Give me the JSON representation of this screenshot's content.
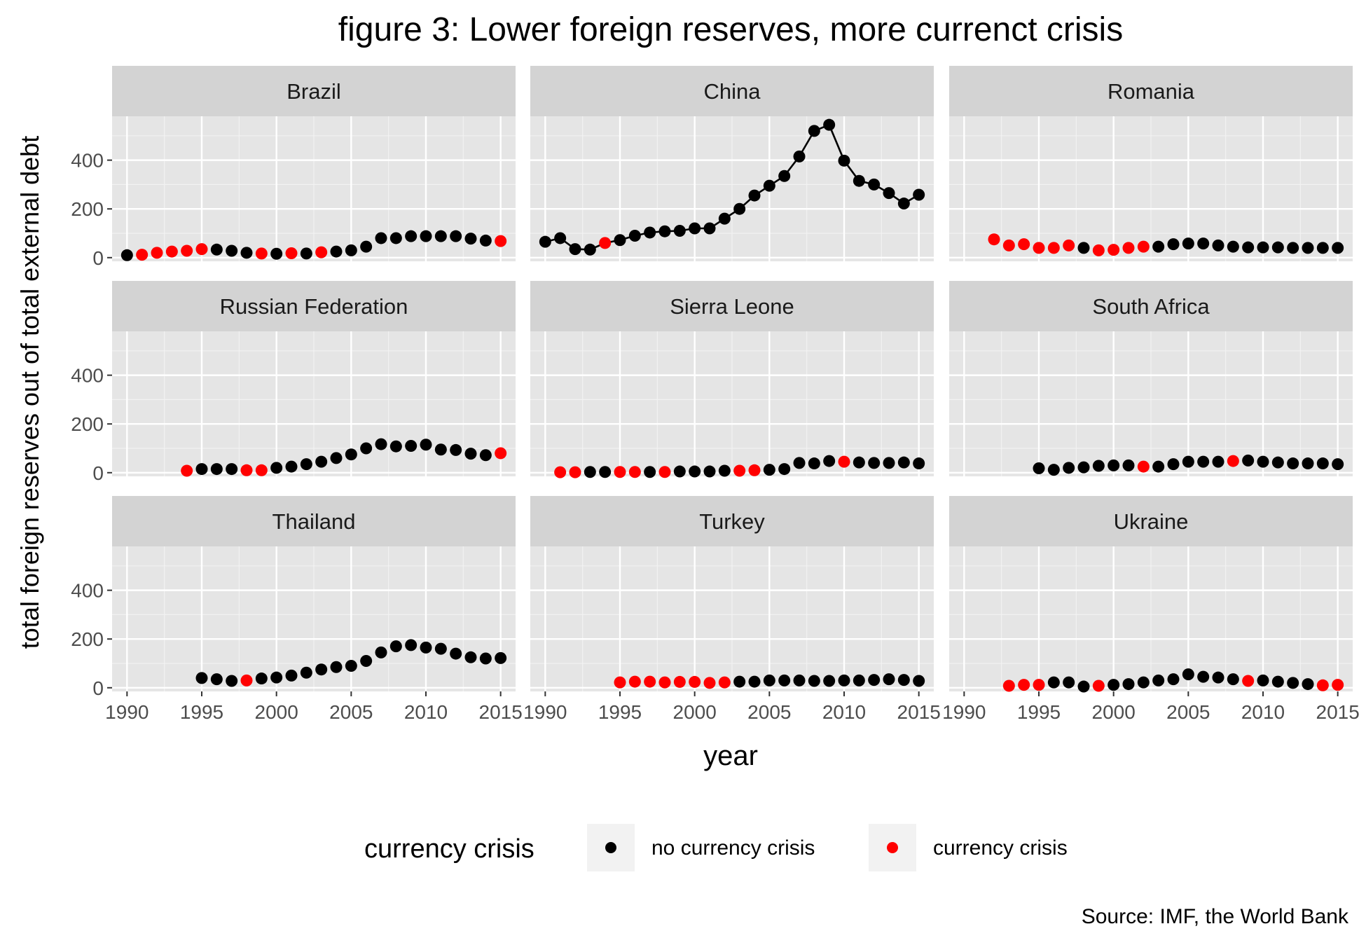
{
  "chart_data": {
    "type": "scatter",
    "title": "figure 3: Lower foreign reserves, more currenct crisis",
    "xlabel": "year",
    "ylabel": "total foreign reserves out of total external debt",
    "caption": "Source: IMF, the World Bank",
    "xlim": [
      1989,
      2016
    ],
    "ylim": [
      -15,
      580
    ],
    "xticks": [
      1990,
      1995,
      2000,
      2005,
      2010,
      2015
    ],
    "yticks": [
      0,
      200,
      400
    ],
    "grid": true,
    "legend": {
      "title": "currency crisis",
      "position": "bottom",
      "entries": [
        {
          "label": "no currency crisis",
          "color": "#000000"
        },
        {
          "label": "currency crisis",
          "color": "#ff0000"
        }
      ]
    },
    "colors": {
      "no_crisis": "#000000",
      "crisis": "#ff0000",
      "panel_bg": "#e5e5e5",
      "strip_bg": "#d3d3d3"
    },
    "panels": [
      {
        "name": "Brazil",
        "x": [
          1990,
          1991,
          1992,
          1993,
          1994,
          1995,
          1996,
          1997,
          1998,
          1999,
          2000,
          2001,
          2002,
          2003,
          2004,
          2005,
          2006,
          2007,
          2008,
          2009,
          2010,
          2011,
          2012,
          2013,
          2014,
          2015
        ],
        "y": [
          10,
          12,
          20,
          25,
          28,
          35,
          33,
          28,
          20,
          17,
          16,
          18,
          17,
          22,
          25,
          30,
          45,
          80,
          80,
          88,
          88,
          88,
          88,
          78,
          70,
          68
        ],
        "crisis": [
          0,
          1,
          1,
          1,
          1,
          1,
          0,
          0,
          0,
          1,
          0,
          1,
          0,
          1,
          0,
          0,
          0,
          0,
          0,
          0,
          0,
          0,
          0,
          0,
          0,
          1
        ]
      },
      {
        "name": "China",
        "x": [
          1990,
          1991,
          1992,
          1993,
          1994,
          1995,
          1996,
          1997,
          1998,
          1999,
          2000,
          2001,
          2002,
          2003,
          2004,
          2005,
          2006,
          2007,
          2008,
          2009,
          2010,
          2011,
          2012,
          2013,
          2014,
          2015
        ],
        "y": [
          65,
          80,
          35,
          33,
          60,
          72,
          90,
          103,
          108,
          110,
          120,
          120,
          160,
          200,
          255,
          295,
          335,
          415,
          520,
          545,
          398,
          315,
          300,
          265,
          222,
          258
        ],
        "crisis": [
          0,
          0,
          0,
          0,
          1,
          0,
          0,
          0,
          0,
          0,
          0,
          0,
          0,
          0,
          0,
          0,
          0,
          0,
          0,
          0,
          0,
          0,
          0,
          0,
          0,
          0
        ],
        "line": true
      },
      {
        "name": "Romania",
        "x": [
          1992,
          1993,
          1994,
          1995,
          1996,
          1997,
          1998,
          1999,
          2000,
          2001,
          2002,
          2003,
          2004,
          2005,
          2006,
          2007,
          2008,
          2009,
          2010,
          2011,
          2012,
          2013,
          2014,
          2015
        ],
        "y": [
          75,
          50,
          55,
          40,
          40,
          50,
          40,
          30,
          32,
          40,
          45,
          45,
          55,
          58,
          58,
          50,
          45,
          42,
          42,
          42,
          40,
          40,
          40,
          40
        ],
        "crisis": [
          1,
          1,
          1,
          1,
          1,
          1,
          0,
          1,
          1,
          1,
          1,
          0,
          0,
          0,
          0,
          0,
          0,
          0,
          0,
          0,
          0,
          0,
          0,
          0
        ]
      },
      {
        "name": "Russian Federation",
        "x": [
          1994,
          1995,
          1996,
          1997,
          1998,
          1999,
          2000,
          2001,
          2002,
          2003,
          2004,
          2005,
          2006,
          2007,
          2008,
          2009,
          2010,
          2011,
          2012,
          2013,
          2014,
          2015
        ],
        "y": [
          8,
          15,
          15,
          15,
          10,
          10,
          20,
          25,
          35,
          45,
          60,
          75,
          100,
          117,
          108,
          110,
          115,
          95,
          93,
          78,
          72,
          80
        ],
        "crisis": [
          1,
          0,
          0,
          0,
          1,
          1,
          0,
          0,
          0,
          0,
          0,
          0,
          0,
          0,
          0,
          0,
          0,
          0,
          0,
          0,
          0,
          1
        ]
      },
      {
        "name": "Sierra Leone",
        "x": [
          1991,
          1992,
          1993,
          1994,
          1995,
          1996,
          1997,
          1998,
          1999,
          2000,
          2001,
          2002,
          2003,
          2004,
          2005,
          2006,
          2007,
          2008,
          2009,
          2010,
          2011,
          2012,
          2013,
          2014,
          2015
        ],
        "y": [
          2,
          2,
          3,
          3,
          3,
          3,
          3,
          3,
          5,
          5,
          5,
          8,
          8,
          10,
          12,
          15,
          40,
          38,
          48,
          45,
          42,
          40,
          40,
          42,
          38
        ],
        "crisis": [
          1,
          1,
          0,
          0,
          1,
          1,
          0,
          1,
          0,
          0,
          0,
          0,
          1,
          1,
          0,
          0,
          0,
          0,
          0,
          1,
          0,
          0,
          0,
          0,
          0
        ]
      },
      {
        "name": "South Africa",
        "x": [
          1995,
          1996,
          1997,
          1998,
          1999,
          2000,
          2001,
          2002,
          2003,
          2004,
          2005,
          2006,
          2007,
          2008,
          2009,
          2010,
          2011,
          2012,
          2013,
          2014,
          2015
        ],
        "y": [
          18,
          12,
          20,
          22,
          28,
          30,
          30,
          25,
          25,
          35,
          45,
          45,
          45,
          48,
          50,
          45,
          42,
          38,
          38,
          38,
          35
        ],
        "crisis": [
          0,
          0,
          0,
          0,
          0,
          0,
          0,
          1,
          0,
          0,
          0,
          0,
          0,
          1,
          0,
          0,
          0,
          0,
          0,
          0,
          0
        ]
      },
      {
        "name": "Thailand",
        "x": [
          1995,
          1996,
          1997,
          1998,
          1999,
          2000,
          2001,
          2002,
          2003,
          2004,
          2005,
          2006,
          2007,
          2008,
          2009,
          2010,
          2011,
          2012,
          2013,
          2014,
          2015
        ],
        "y": [
          40,
          35,
          28,
          30,
          38,
          42,
          50,
          62,
          75,
          85,
          90,
          110,
          145,
          170,
          175,
          165,
          160,
          140,
          125,
          120,
          122
        ],
        "crisis": [
          0,
          0,
          0,
          1,
          0,
          0,
          0,
          0,
          0,
          0,
          0,
          0,
          0,
          0,
          0,
          0,
          0,
          0,
          0,
          0,
          0
        ]
      },
      {
        "name": "Turkey",
        "x": [
          1995,
          1996,
          1997,
          1998,
          1999,
          2000,
          2001,
          2002,
          2003,
          2004,
          2005,
          2006,
          2007,
          2008,
          2009,
          2010,
          2011,
          2012,
          2013,
          2014,
          2015
        ],
        "y": [
          22,
          25,
          25,
          22,
          24,
          24,
          20,
          22,
          25,
          25,
          30,
          30,
          30,
          28,
          28,
          30,
          30,
          32,
          35,
          32,
          28
        ],
        "crisis": [
          1,
          1,
          1,
          1,
          1,
          1,
          1,
          1,
          0,
          0,
          0,
          0,
          0,
          0,
          0,
          0,
          0,
          0,
          0,
          0,
          0
        ]
      },
      {
        "name": "Ukraine",
        "x": [
          1993,
          1994,
          1995,
          1996,
          1997,
          1998,
          1999,
          2000,
          2001,
          2002,
          2003,
          2004,
          2005,
          2006,
          2007,
          2008,
          2009,
          2010,
          2011,
          2012,
          2013,
          2014,
          2015
        ],
        "y": [
          8,
          12,
          12,
          22,
          22,
          5,
          8,
          12,
          15,
          22,
          30,
          35,
          55,
          45,
          42,
          35,
          28,
          30,
          25,
          20,
          15,
          10,
          12
        ],
        "crisis": [
          1,
          1,
          1,
          0,
          0,
          0,
          1,
          0,
          0,
          0,
          0,
          0,
          0,
          0,
          0,
          0,
          1,
          0,
          0,
          0,
          0,
          1,
          1
        ]
      }
    ]
  }
}
